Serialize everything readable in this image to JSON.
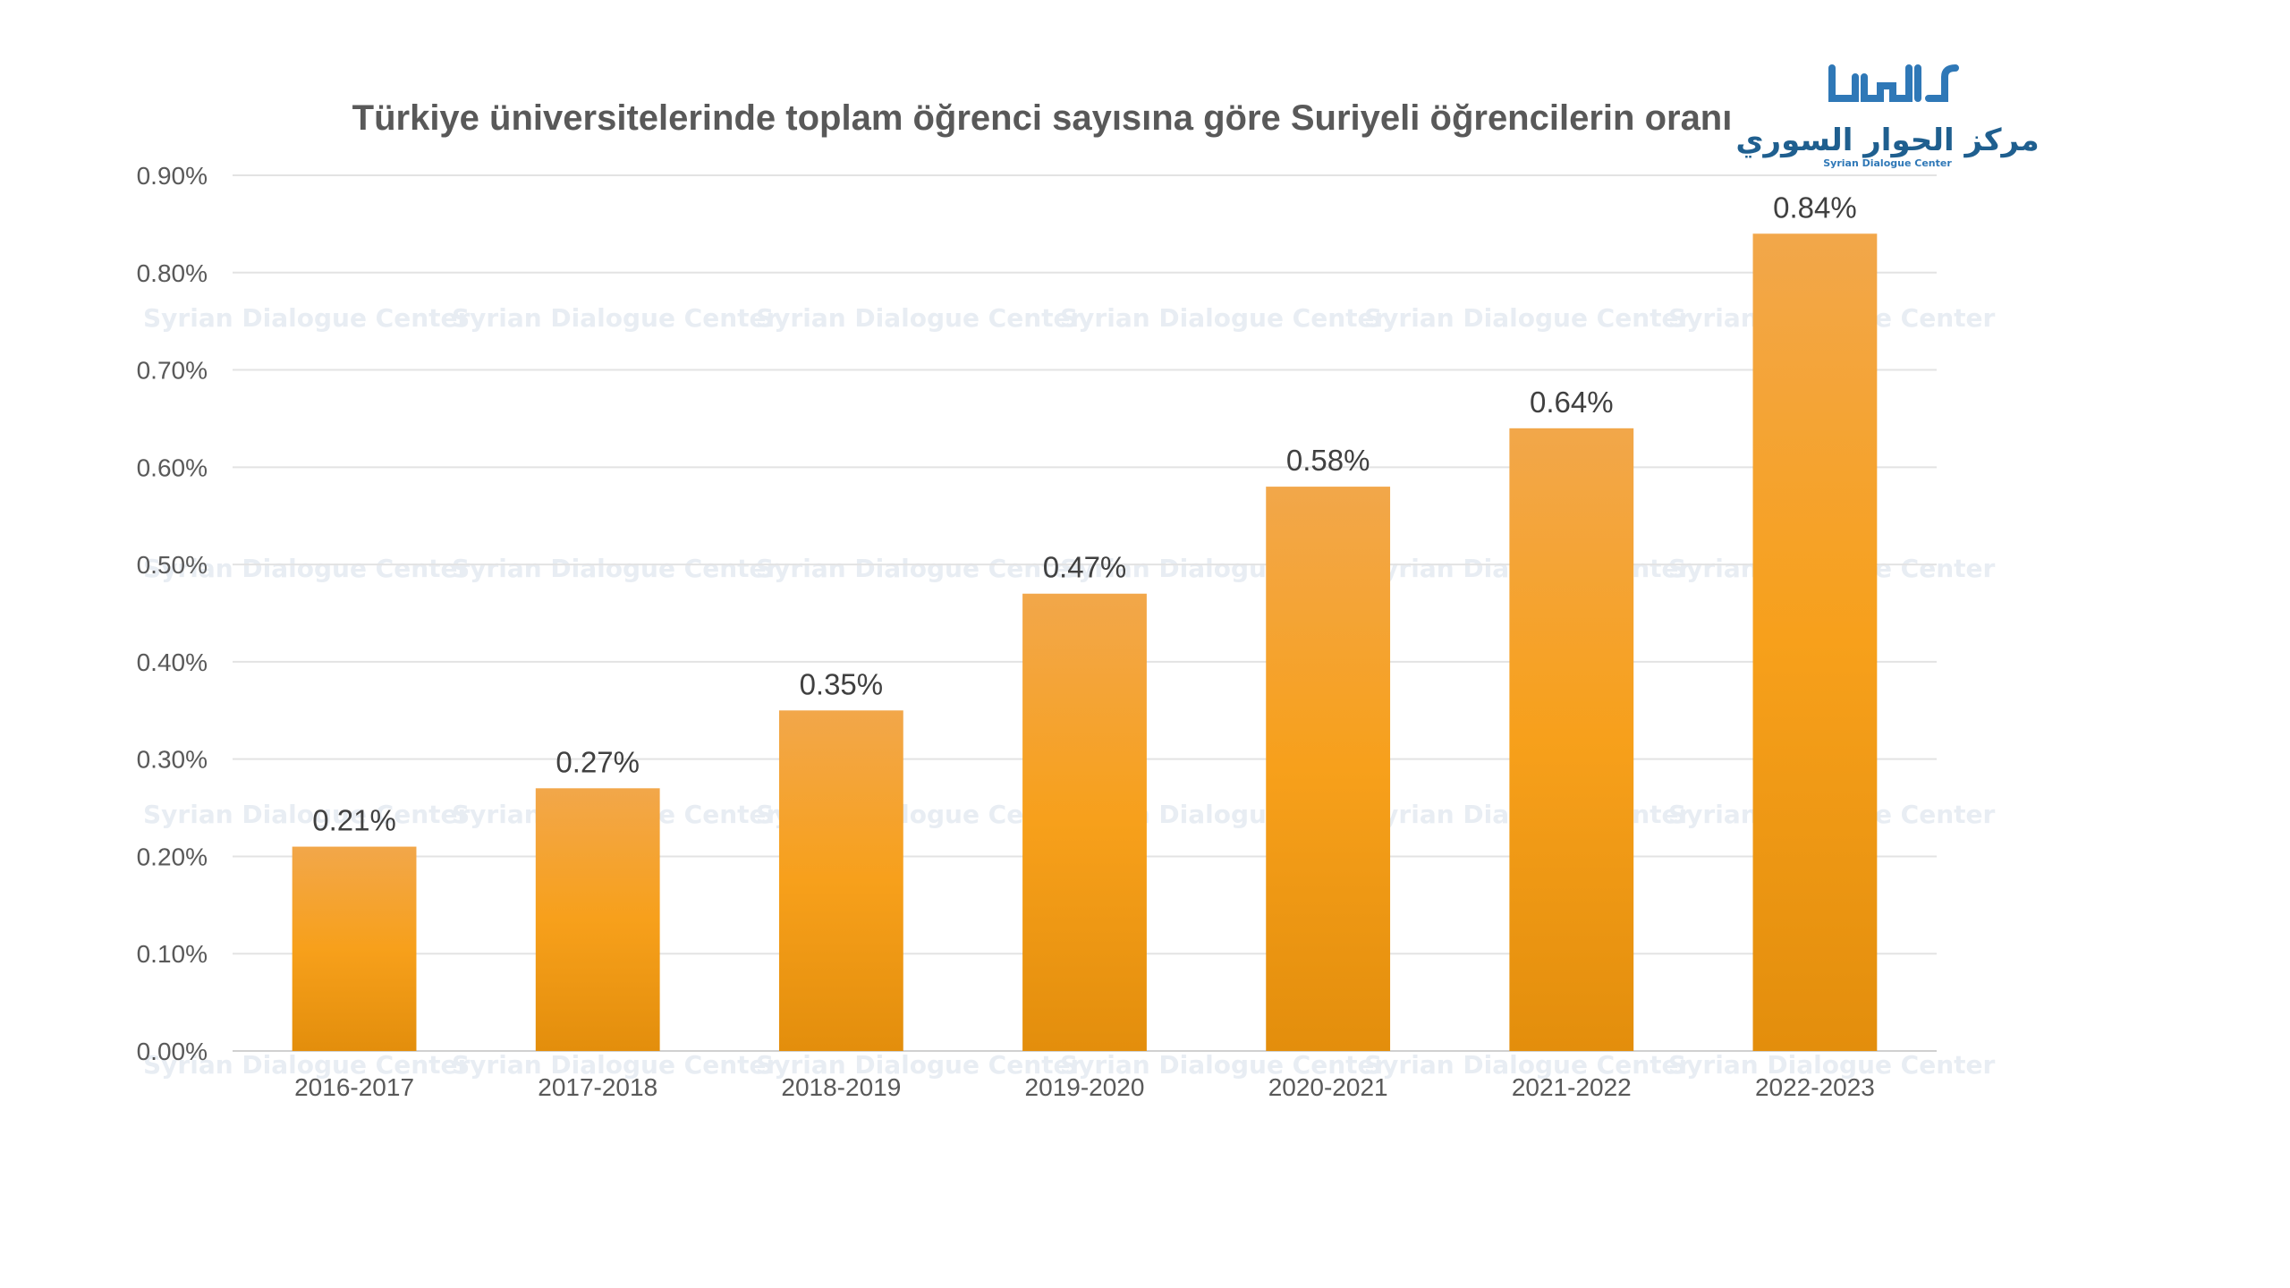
{
  "chart_data": {
    "type": "bar",
    "title": "Türkiye üniversitelerinde toplam öğrenci sayısına göre Suriyeli öğrencilerin oranı",
    "categories": [
      "2016-2017",
      "2017-2018",
      "2018-2019",
      "2019-2020",
      "2020-2021",
      "2021-2022",
      "2022-2023"
    ],
    "values": [
      0.21,
      0.27,
      0.35,
      0.47,
      0.58,
      0.64,
      0.84
    ],
    "data_labels": [
      "0.21%",
      "0.27%",
      "0.35%",
      "0.47%",
      "0.58%",
      "0.64%",
      "0.84%"
    ],
    "y_ticks": [
      "0.00%",
      "0.10%",
      "0.20%",
      "0.30%",
      "0.40%",
      "0.50%",
      "0.60%",
      "0.70%",
      "0.80%",
      "0.90%"
    ],
    "ylim": [
      0,
      0.9
    ],
    "y_unit": "%",
    "grid": true,
    "legend": "none",
    "bar_color_top": "#f2a74a",
    "bar_color_mid": "#f7a01b",
    "bar_color_bottom": "#e38e0c"
  },
  "logo": {
    "subtitle": "Syrian Dialogue Center",
    "primary_color": "#2f78b7",
    "secondary_color": "#1f5f8f"
  },
  "watermark": {
    "text": "Syrian Dialogue Center"
  }
}
